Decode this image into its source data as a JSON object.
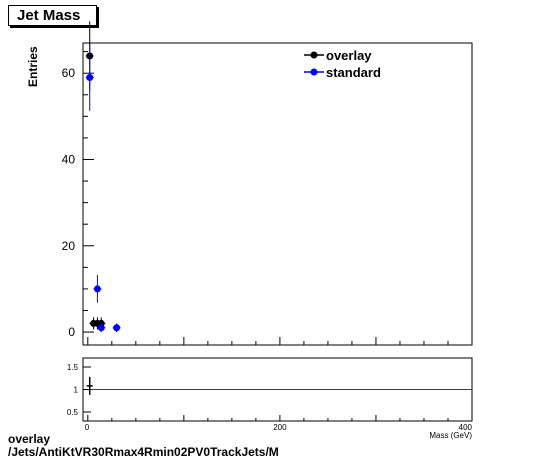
{
  "title": "Jet Mass",
  "footer": {
    "line1": "overlay",
    "line2": "/Jets/AntiKtVR30Rmax4Rmin02PV0TrackJets/M"
  },
  "colors": {
    "overlay": "#000000",
    "standard": "#0000ff",
    "ratio_line": "#cc0000"
  },
  "chart_data": [
    {
      "type": "scatter",
      "ylabel": "Entries",
      "xlim": [
        -5,
        400
      ],
      "ylim": [
        -3,
        67
      ],
      "yticks": [
        "0",
        "20",
        "40",
        "60"
      ],
      "legend": {
        "position": "top-right",
        "entries": [
          "overlay",
          "standard"
        ]
      },
      "series": [
        {
          "name": "overlay",
          "color": "#000000",
          "points": [
            {
              "x": 2,
              "y": 64,
              "err": 8
            },
            {
              "x": 6,
              "y": 2,
              "err": 1.4
            },
            {
              "x": 10,
              "y": 2,
              "err": 1.4
            },
            {
              "x": 14,
              "y": 2,
              "err": 1.4
            }
          ]
        },
        {
          "name": "standard",
          "color": "#0000ff",
          "points": [
            {
              "x": 2,
              "y": 59,
              "err": 7.7
            },
            {
              "x": 10,
              "y": 10,
              "err": 3.2
            },
            {
              "x": 14,
              "y": 1,
              "err": 1
            },
            {
              "x": 30,
              "y": 1,
              "err": 1
            }
          ]
        }
      ]
    },
    {
      "type": "scatter",
      "xlabel": "Mass (GeV)",
      "xlim": [
        -5,
        400
      ],
      "ylim": [
        0.3,
        1.7
      ],
      "xticks": [
        "0",
        "200",
        "400"
      ],
      "yticks": [
        "0.5",
        "1",
        "1.5"
      ],
      "reference_line": 1,
      "points": [
        {
          "x": 2,
          "y": 1.08,
          "err": 0.2
        }
      ]
    }
  ]
}
